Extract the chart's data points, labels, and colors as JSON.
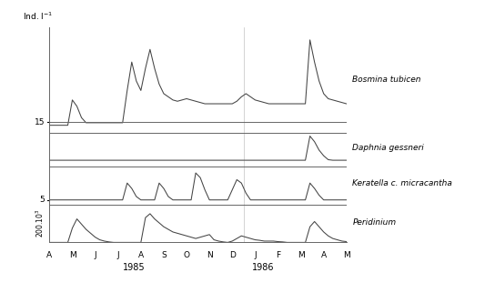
{
  "species_labels": [
    "Bosmina tubicen",
    "Daphnia gessneri",
    "Keratella c. micracantha",
    "Peridinium"
  ],
  "x_labels": [
    "A",
    "M",
    "J",
    "J",
    "A",
    "S",
    "O",
    "N",
    "D",
    "J",
    "F",
    "M",
    "A",
    "M"
  ],
  "background_color": "#ffffff",
  "line_color": "#444444",
  "sep_color": "#666666",
  "bosmina": [
    10,
    10,
    10,
    10,
    10,
    50,
    40,
    22,
    14,
    14,
    14,
    14,
    14,
    14,
    14,
    14,
    14,
    65,
    110,
    80,
    65,
    100,
    130,
    100,
    75,
    60,
    55,
    50,
    48,
    50,
    52,
    50,
    48,
    46,
    44,
    44,
    44,
    44,
    44,
    44,
    44,
    48,
    55,
    60,
    55,
    50,
    48,
    46,
    44,
    44,
    44,
    44,
    44,
    44,
    44,
    44,
    44,
    145,
    110,
    80,
    60,
    52,
    50,
    48,
    46,
    44
  ],
  "daphnia": [
    7,
    7,
    7,
    7,
    7,
    7,
    7,
    7,
    7,
    7,
    7,
    7,
    7,
    7,
    7,
    7,
    7,
    7,
    7,
    7,
    7,
    7,
    7,
    7,
    7,
    7,
    7,
    7,
    7,
    7,
    7,
    7,
    7,
    7,
    7,
    7,
    7,
    7,
    7,
    7,
    7,
    7,
    7,
    7,
    7,
    7,
    7,
    7,
    7,
    7,
    7,
    7,
    7,
    7,
    7,
    7,
    7,
    50,
    40,
    25,
    15,
    8,
    7,
    7,
    7,
    7
  ],
  "keratella": [
    5,
    5,
    5,
    5,
    5,
    5,
    5,
    5,
    5,
    5,
    5,
    5,
    5,
    5,
    5,
    5,
    5,
    30,
    22,
    10,
    5,
    5,
    5,
    5,
    30,
    22,
    10,
    5,
    5,
    5,
    5,
    5,
    45,
    38,
    20,
    5,
    5,
    5,
    5,
    5,
    20,
    35,
    30,
    15,
    5,
    5,
    5,
    5,
    5,
    5,
    5,
    5,
    5,
    5,
    5,
    5,
    5,
    30,
    22,
    12,
    5,
    5,
    5,
    5,
    5,
    5
  ],
  "peridinium": [
    0,
    0,
    0,
    0,
    0,
    55,
    90,
    70,
    50,
    35,
    20,
    10,
    5,
    2,
    0,
    0,
    0,
    0,
    0,
    0,
    0,
    95,
    110,
    90,
    75,
    60,
    50,
    40,
    35,
    30,
    25,
    20,
    15,
    20,
    25,
    30,
    10,
    5,
    2,
    0,
    5,
    15,
    25,
    20,
    15,
    10,
    8,
    5,
    5,
    5,
    3,
    2,
    0,
    0,
    0,
    0,
    0,
    60,
    80,
    60,
    40,
    25,
    15,
    10,
    5,
    3
  ]
}
